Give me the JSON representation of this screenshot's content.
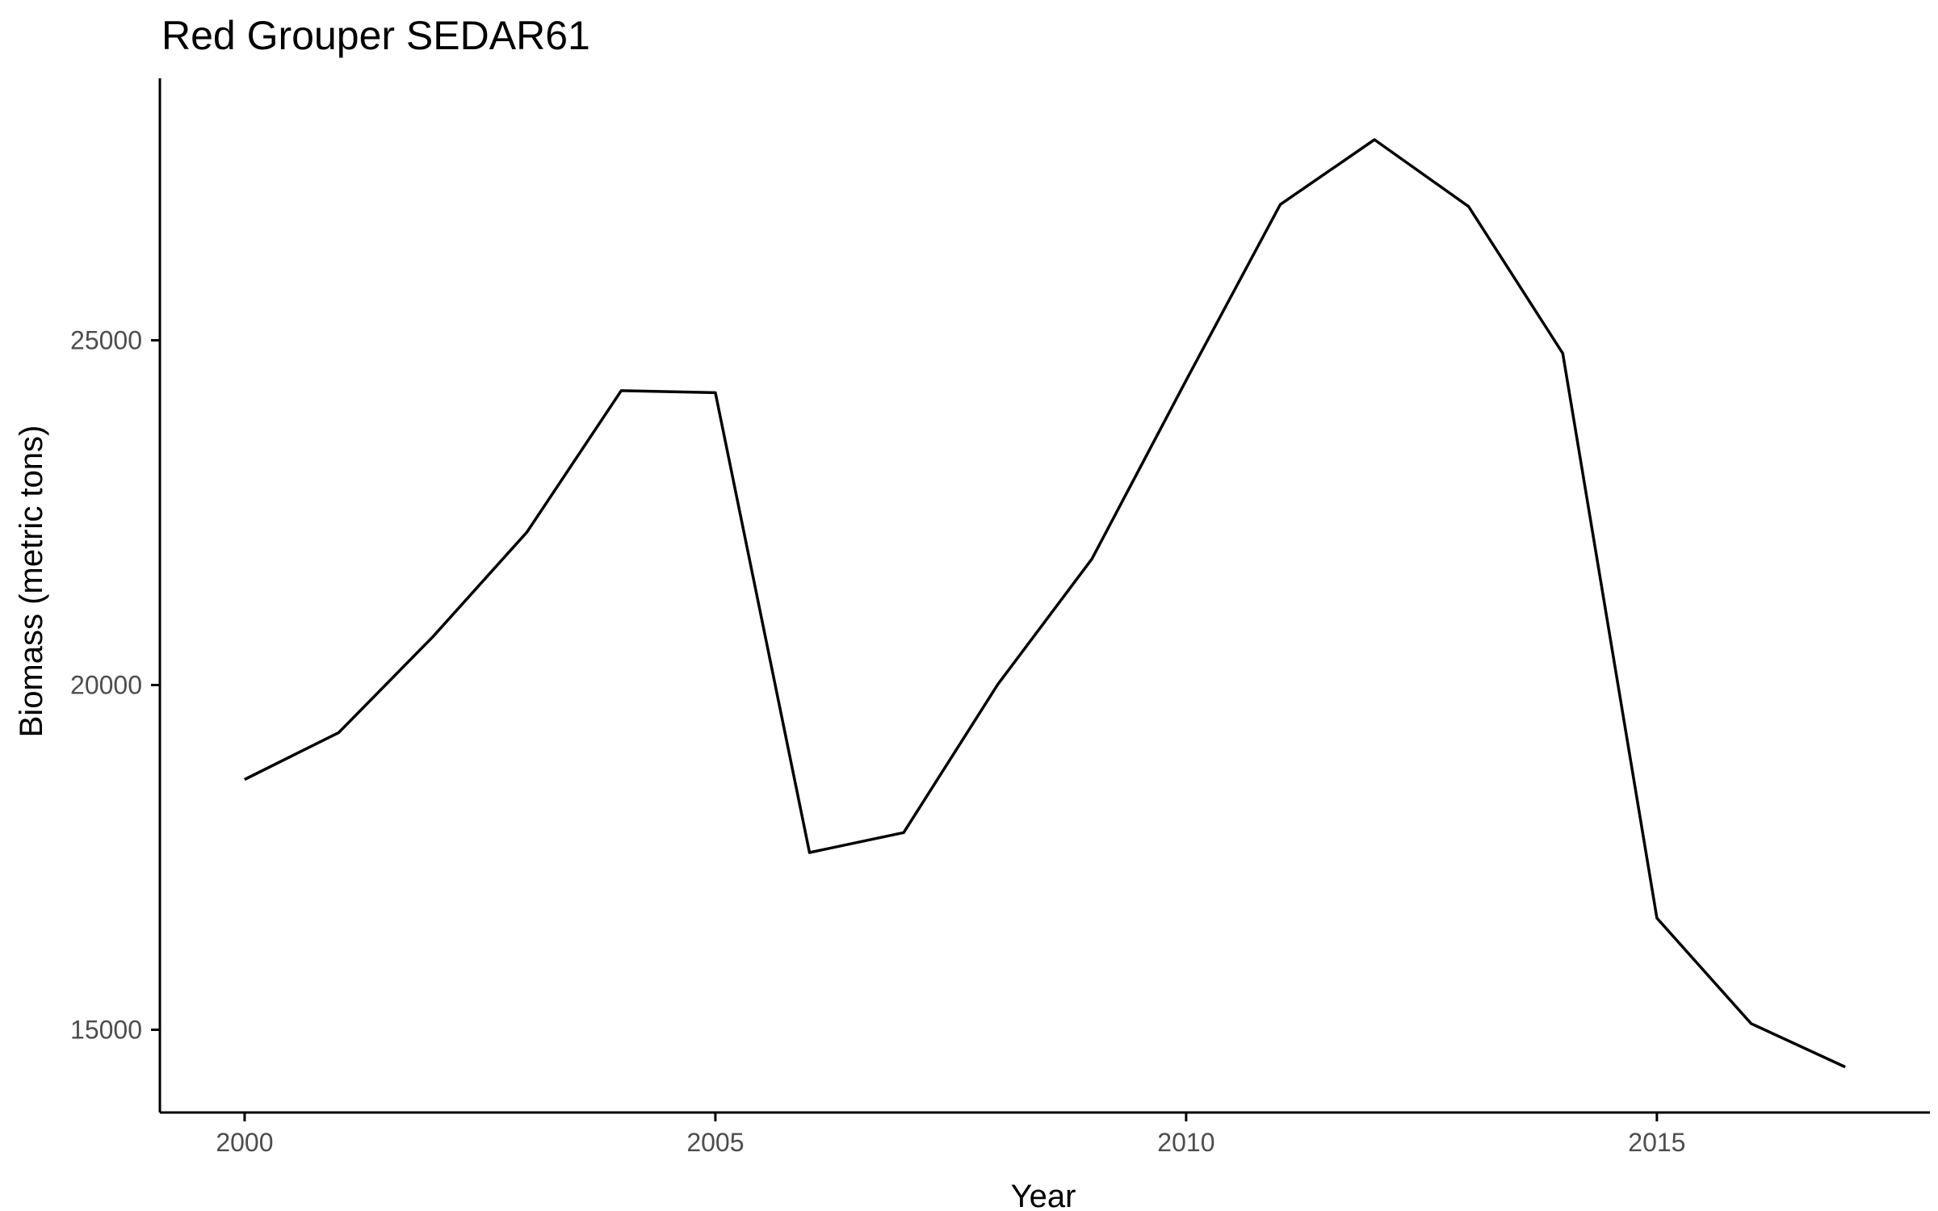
{
  "chart_data": {
    "type": "line",
    "title": "Red Grouper SEDAR61",
    "xlabel": "Year",
    "ylabel": "Biomass (metric tons)",
    "xlim": [
      1999.1,
      2017.9
    ],
    "ylim": [
      13800,
      28800
    ],
    "xticks": [
      2000,
      2005,
      2010,
      2015
    ],
    "yticks": [
      15000,
      20000,
      25000
    ],
    "grid": false,
    "series": [
      {
        "color": "#000000",
        "x": [
          2000,
          2001,
          2002,
          2003,
          2004,
          2005,
          2006,
          2007,
          2008,
          2009,
          2010,
          2011,
          2012,
          2013,
          2014,
          2015,
          2016,
          2017
        ],
        "y": [
          18630,
          19310,
          20700,
          22220,
          24270,
          24240,
          17570,
          17860,
          20010,
          21830,
          24420,
          26970,
          27910,
          26940,
          24810,
          16620,
          15090,
          14460
        ]
      }
    ]
  }
}
